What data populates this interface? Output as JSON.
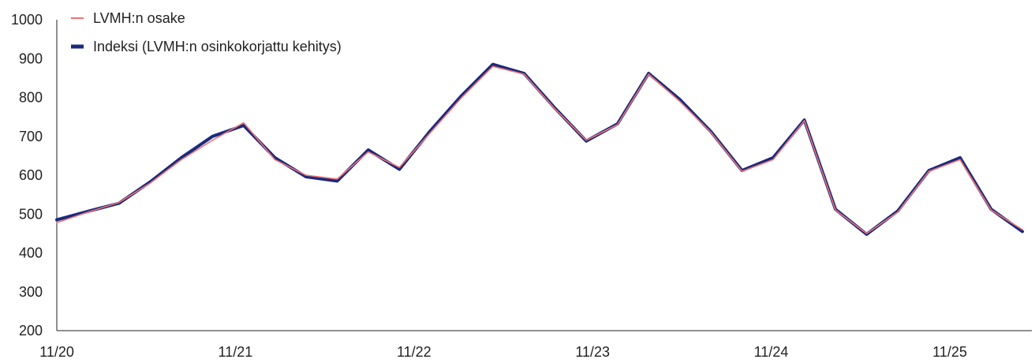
{
  "chart_data": {
    "type": "line",
    "title": "",
    "xlabel": "",
    "ylabel": "",
    "ylim": [
      200,
      1000
    ],
    "y_ticks": [
      "1000",
      "900",
      "800",
      "700",
      "600",
      "500",
      "400",
      "300",
      "200"
    ],
    "x_ticks": [
      "11/20",
      "11/21",
      "11/22",
      "11/23",
      "11/24",
      "11/25"
    ],
    "grid": false,
    "legend": "top-left",
    "x": [
      "11/20",
      "01/21",
      "03/21",
      "05/21",
      "07/21",
      "09/21",
      "11/21",
      "01/22",
      "03/22",
      "05/22",
      "07/22",
      "09/22",
      "11/22",
      "01/23",
      "03/23",
      "05/23",
      "07/23",
      "09/23",
      "11/23",
      "01/24",
      "03/24",
      "05/24",
      "07/24",
      "09/24",
      "11/24",
      "01/25",
      "03/25",
      "05/25",
      "07/25",
      "09/25",
      "11/25",
      "01/26"
    ],
    "series": [
      {
        "name": "LVMH:n osake",
        "color": "#f07173",
        "values": [
          478,
          505,
          530,
          580,
          640,
          690,
          735,
          640,
          600,
          590,
          660,
          620,
          710,
          800,
          880,
          860,
          770,
          690,
          730,
          860,
          790,
          710,
          610,
          640,
          740,
          510,
          450,
          505,
          610,
          640,
          510,
          460
        ]
      },
      {
        "name": "Indeksi (LVMH:n osinkokorjattu kehitys)",
        "color": "#1a2a7c",
        "values": [
          485,
          507,
          528,
          583,
          645,
          700,
          728,
          645,
          596,
          585,
          665,
          615,
          715,
          805,
          885,
          862,
          772,
          688,
          732,
          862,
          795,
          712,
          612,
          645,
          742,
          512,
          448,
          508,
          612,
          645,
          512,
          455
        ]
      }
    ]
  }
}
